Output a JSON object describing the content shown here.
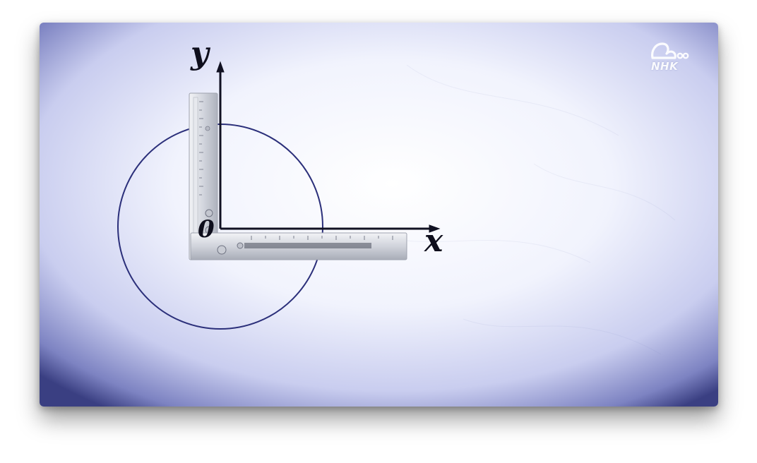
{
  "frame": {
    "axes": {
      "y_label": "y",
      "x_label": "x",
      "origin_label": "0"
    },
    "logo": {
      "text": "NHK",
      "icon": "nhk-mascot-icon"
    },
    "colors": {
      "paper": "#e9ecfa",
      "vignette": "#2a2f6e",
      "ink": "#111122",
      "circle": "#2b2f7a",
      "ruler": "#c8ccd6"
    }
  }
}
